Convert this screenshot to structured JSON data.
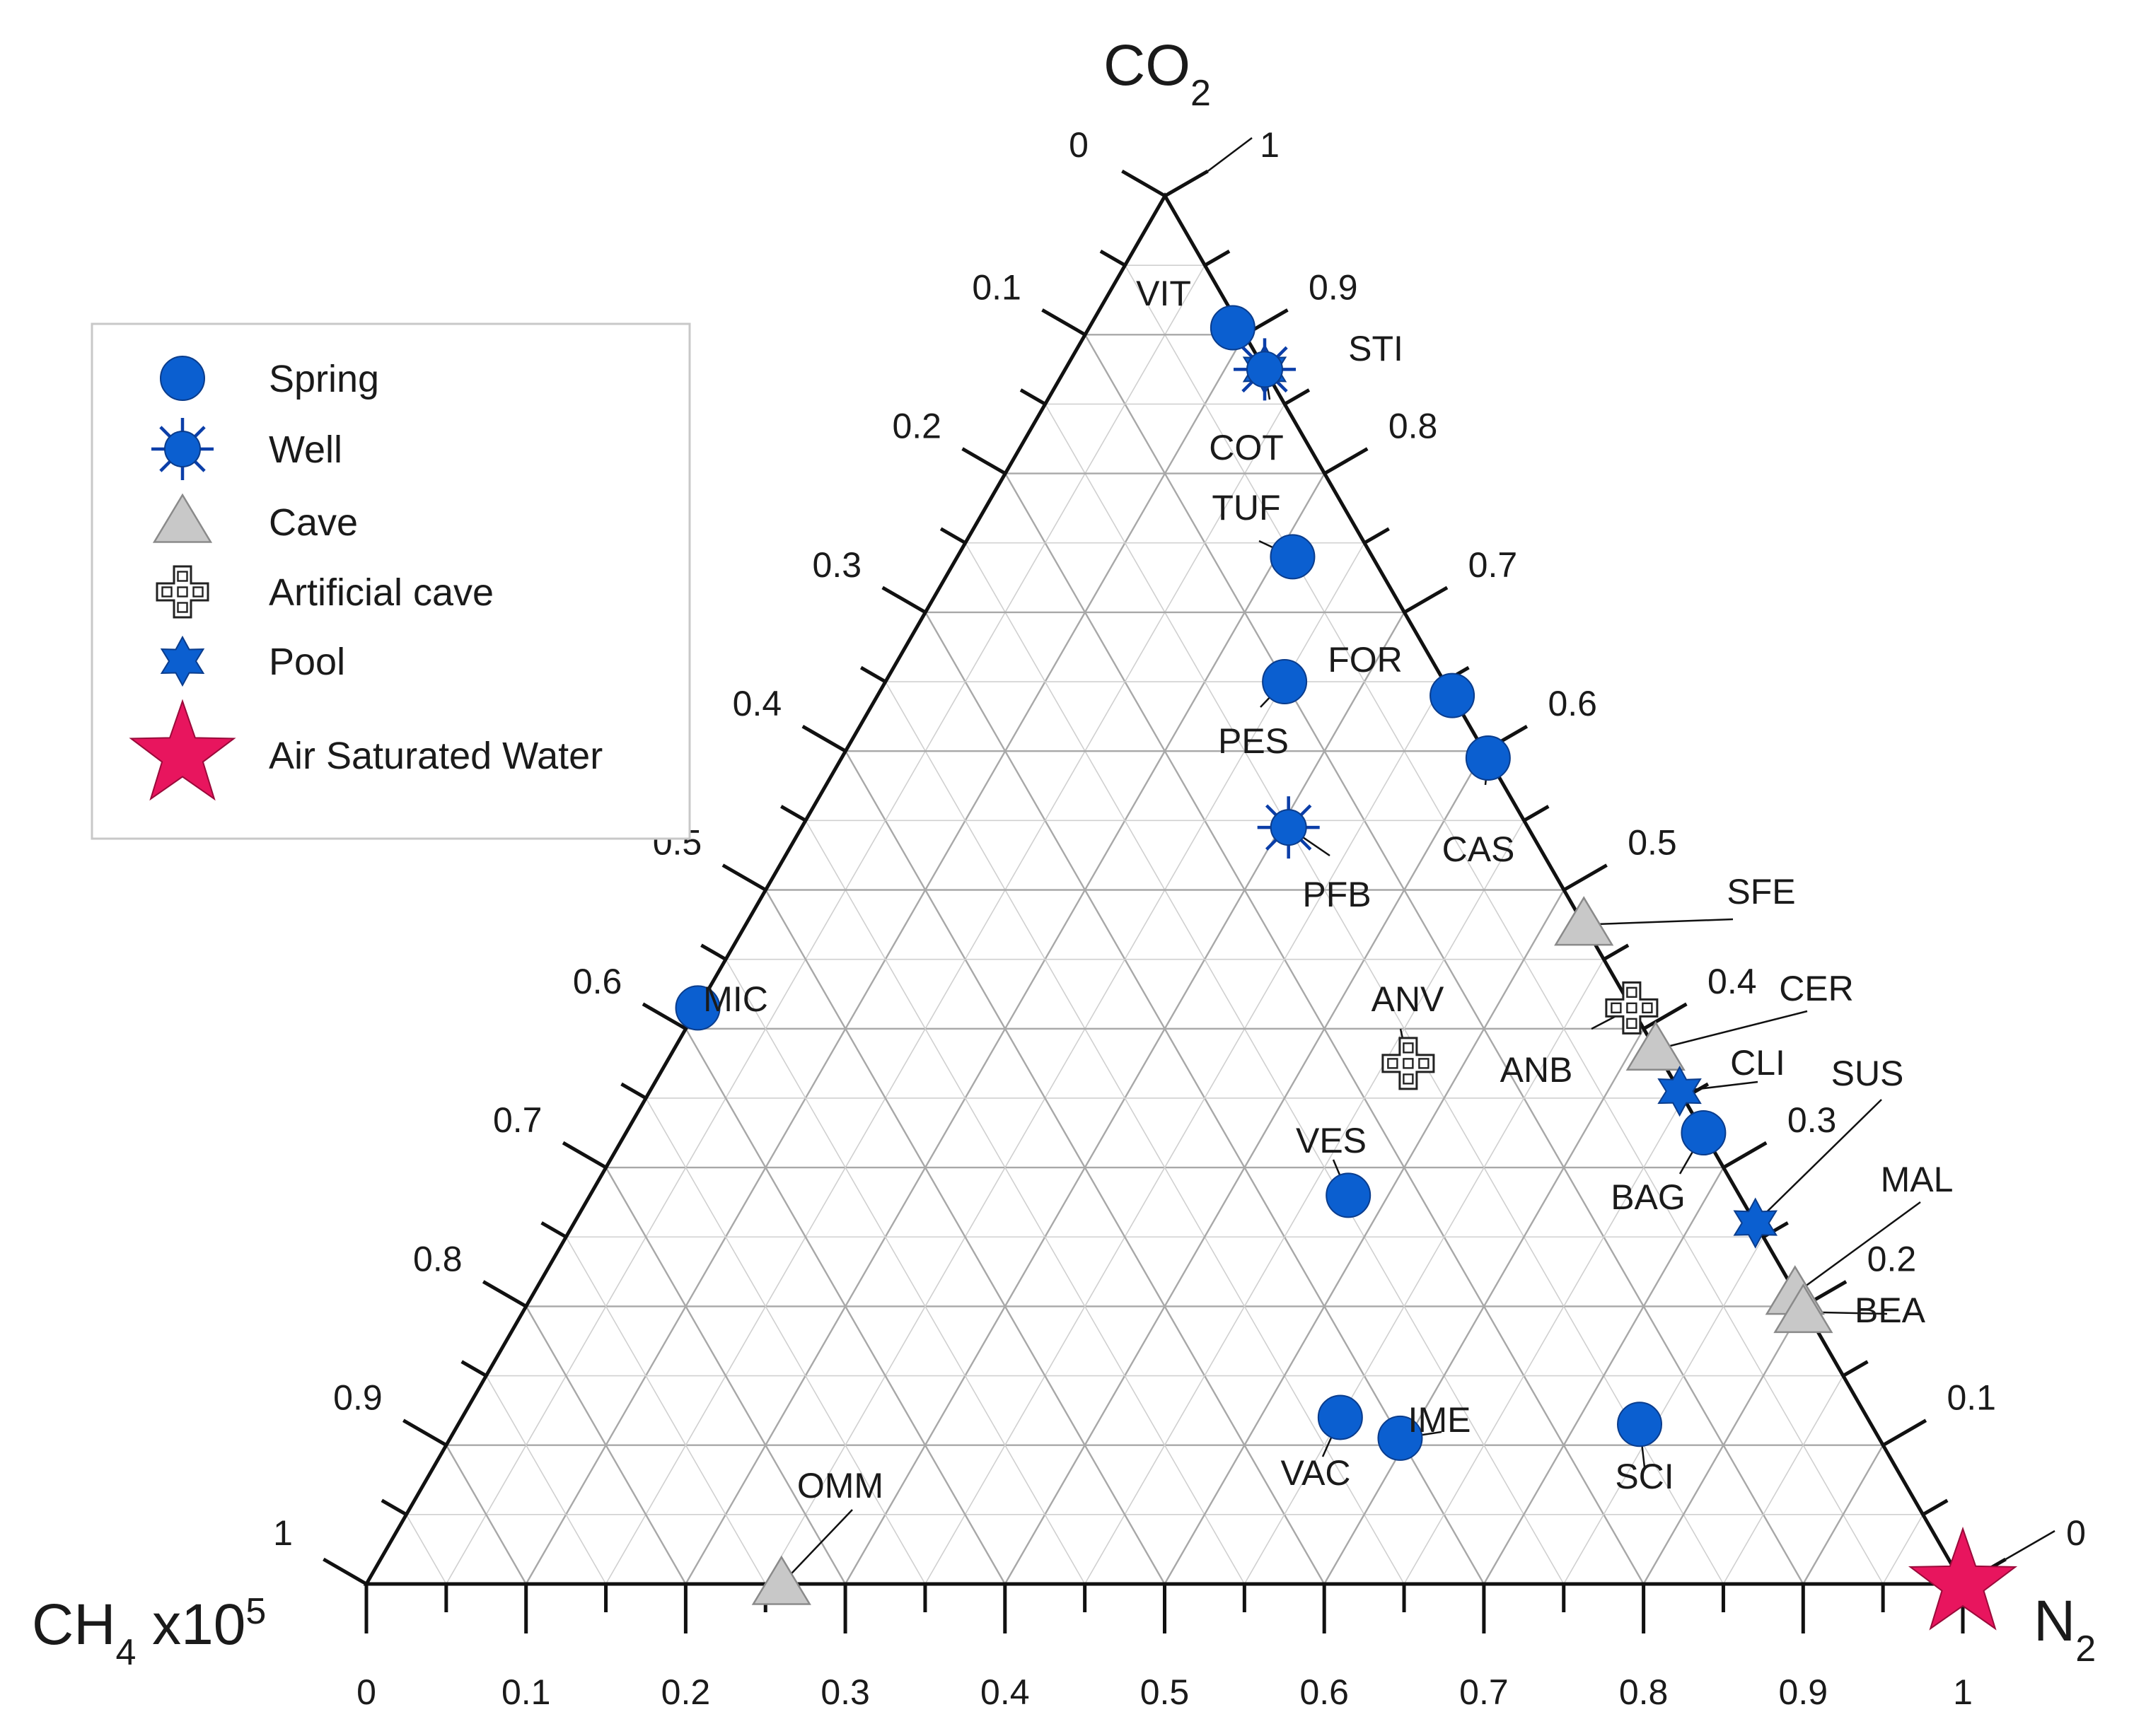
{
  "chart_data": {
    "type": "ternary-scatter",
    "vertex_labels": {
      "top": {
        "main": "CO",
        "sub": "2"
      },
      "left": {
        "main": "CH",
        "sub": "4",
        "tail": " x10",
        "sup": "5"
      },
      "right": {
        "main": "N",
        "sub": "2"
      }
    },
    "bottom_ticks": [
      "0",
      "0.1",
      "0.2",
      "0.3",
      "0.4",
      "0.5",
      "0.6",
      "0.7",
      "0.8",
      "0.9",
      "1"
    ],
    "left_ticks": [
      "0",
      "0.1",
      "0.2",
      "0.3",
      "0.4",
      "0.5",
      "0.6",
      "0.7",
      "0.8",
      "0.9",
      "1"
    ],
    "right_ticks": [
      "1",
      "0.9",
      "0.8",
      "0.7",
      "0.6",
      "0.5",
      "0.4",
      "0.3",
      "0.2",
      "0.1",
      "0"
    ],
    "series": [
      {
        "name": "Spring",
        "marker": "circle",
        "color": "#0b5fd0"
      },
      {
        "name": "Well",
        "marker": "burst",
        "color": "#0b5fd0"
      },
      {
        "name": "Cave",
        "marker": "triangle",
        "color": "#c8c8c8"
      },
      {
        "name": "Artificial cave",
        "marker": "cross",
        "color": "#ffffff"
      },
      {
        "name": "Pool",
        "marker": "hexstar",
        "color": "#0b5fd0"
      },
      {
        "name": "Air Saturated Water",
        "marker": "star",
        "color": "#e8155e"
      }
    ],
    "points": [
      {
        "label": "VIT",
        "series": "Spring",
        "co2": 0.905,
        "ch4": 0.005
      },
      {
        "label": "STI",
        "series": "Pool",
        "co2": 0.875,
        "ch4": 0.0
      },
      {
        "label": "COT",
        "series": "Well",
        "co2": 0.875,
        "ch4": 0.0
      },
      {
        "label": "TUF",
        "series": "Spring",
        "co2": 0.74,
        "ch4": 0.05
      },
      {
        "label": "PES",
        "series": "Spring",
        "co2": 0.65,
        "ch4": 0.1
      },
      {
        "label": "FOR",
        "series": "Spring",
        "co2": 0.64,
        "ch4": 0.0
      },
      {
        "label": "CAS",
        "series": "Spring",
        "co2": 0.595,
        "ch4": 0.0
      },
      {
        "label": "PFB",
        "series": "Well",
        "co2": 0.545,
        "ch4": 0.15
      },
      {
        "label": "SFE",
        "series": "Cave",
        "co2": 0.475,
        "ch4": 0.0
      },
      {
        "label": "MIC",
        "series": "Spring",
        "co2": 0.415,
        "ch4": 0.585
      },
      {
        "label": "ANB",
        "series": "Artificial cave",
        "co2": 0.415,
        "ch4": 0.0
      },
      {
        "label": "CER",
        "series": "Cave",
        "co2": 0.385,
        "ch4": 0.0
      },
      {
        "label": "ANV",
        "series": "Artificial cave",
        "co2": 0.375,
        "ch4": 0.16
      },
      {
        "label": "CLI",
        "series": "Pool",
        "co2": 0.355,
        "ch4": 0.0
      },
      {
        "label": "BAG",
        "series": "Spring",
        "co2": 0.325,
        "ch4": 0.0
      },
      {
        "label": "VES",
        "series": "Spring",
        "co2": 0.28,
        "ch4": 0.245
      },
      {
        "label": "SUS",
        "series": "Pool",
        "co2": 0.26,
        "ch4": 0.0
      },
      {
        "label": "MAL",
        "series": "Cave",
        "co2": 0.205,
        "ch4": 0.0
      },
      {
        "label": "BEA",
        "series": "Cave",
        "co2": 0.2,
        "ch4": 0.0
      },
      {
        "label": "VAC",
        "series": "Spring",
        "co2": 0.12,
        "ch4": 0.33
      },
      {
        "label": "IME",
        "series": "Spring",
        "co2": 0.105,
        "ch4": 0.3
      },
      {
        "label": "SCI",
        "series": "Spring",
        "co2": 0.115,
        "ch4": 0.145
      },
      {
        "label": "OMM",
        "series": "Cave",
        "co2": 0.0,
        "ch4": 0.74
      },
      {
        "label": "Air Saturated Water",
        "series": "Air Saturated Water",
        "co2": 0.0,
        "ch4": 0.0
      }
    ]
  }
}
